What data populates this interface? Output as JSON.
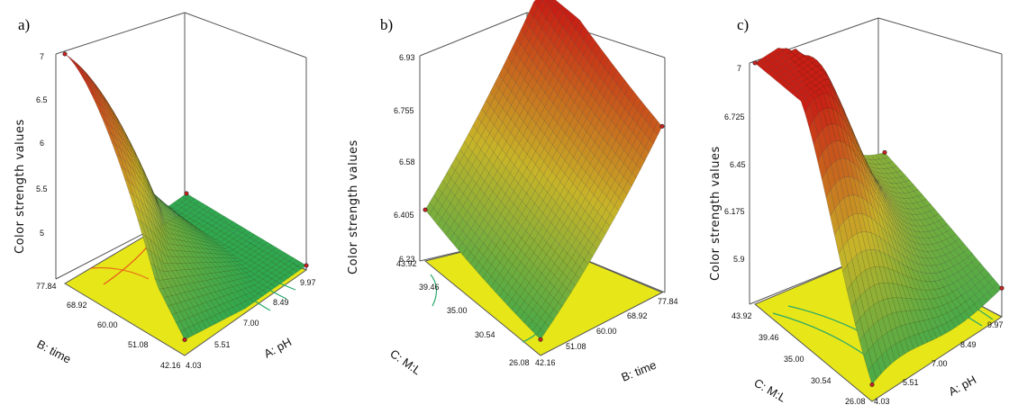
{
  "colors": {
    "floor": "#e6e619",
    "surface_low": "#2fa84f",
    "surface_mid": "#c8b428",
    "surface_high": "#c81e14",
    "contour_green": "#2aa86a",
    "contour_red": "#e8541a",
    "frame": "#555555"
  },
  "chart_data": [
    {
      "type": "surface3d",
      "panel": "a)",
      "zlabel": "Color strength values",
      "z_ticks": [
        "5",
        "5.5",
        "6",
        "6.5",
        "7"
      ],
      "zlim": [
        5,
        7
      ],
      "x_axis": {
        "label": "A: pH",
        "ticks": [
          "4.03",
          "5.51",
          "7.00",
          "8.49",
          "9.97"
        ],
        "range": [
          4.03,
          9.97
        ]
      },
      "y_axis": {
        "label": "B: time",
        "ticks": [
          "42.16",
          "51.08",
          "60.00",
          "68.92",
          "77.84"
        ],
        "range": [
          42.16,
          77.84
        ]
      },
      "corner_values": {
        "pH_low_time_low": 5.1,
        "pH_high_time_low": 4.9,
        "pH_high_time_high": 4.7,
        "pH_low_time_high": 6.55
      },
      "peak": {
        "pH": 4.9,
        "time": 75.5,
        "value": 7.0
      }
    },
    {
      "type": "surface3d",
      "panel": "b)",
      "zlabel": "Color strength values",
      "z_ticks": [
        "6.23",
        "6.405",
        "6.58",
        "6.755",
        "6.93"
      ],
      "zlim": [
        6.23,
        6.93
      ],
      "x_axis": {
        "label": "B: time",
        "ticks": [
          "42.16",
          "51.08",
          "60.00",
          "68.92",
          "77.84"
        ],
        "range": [
          42.16,
          77.84
        ]
      },
      "y_axis": {
        "label": "C: M:L",
        "ticks": [
          "26.08",
          "30.54",
          "35.00",
          "39.46",
          "43.92"
        ],
        "range": [
          26.08,
          43.92
        ]
      },
      "corner_values": {
        "time_low_ML_low": 6.28,
        "time_high_ML_low": 6.72,
        "time_high_ML_high": 6.92,
        "time_low_ML_high": 6.4
      },
      "peak": {
        "time": 77.84,
        "ML": 43.92,
        "value": 6.93
      }
    },
    {
      "type": "surface3d",
      "panel": "c)",
      "zlabel": "Color strength values",
      "z_ticks": [
        "5.9",
        "6.175",
        "6.45",
        "6.725",
        "7"
      ],
      "zlim": [
        5.9,
        7
      ],
      "x_axis": {
        "label": "A: pH",
        "ticks": [
          "4.03",
          "5.51",
          "7.00",
          "8.49",
          "9.97"
        ],
        "range": [
          4.03,
          9.97
        ]
      },
      "y_axis": {
        "label": "C: M:L",
        "ticks": [
          "26.08",
          "30.54",
          "35.00",
          "39.46",
          "43.92"
        ],
        "range": [
          26.08,
          43.92
        ]
      },
      "corner_values": {
        "pH_low_ML_low": 5.65,
        "pH_high_ML_low": 6.05,
        "pH_high_ML_high": 6.35,
        "pH_low_ML_high": 6.5
      },
      "peak": {
        "pH": 4.6,
        "ML": 39.0,
        "value": 7.0
      }
    }
  ]
}
